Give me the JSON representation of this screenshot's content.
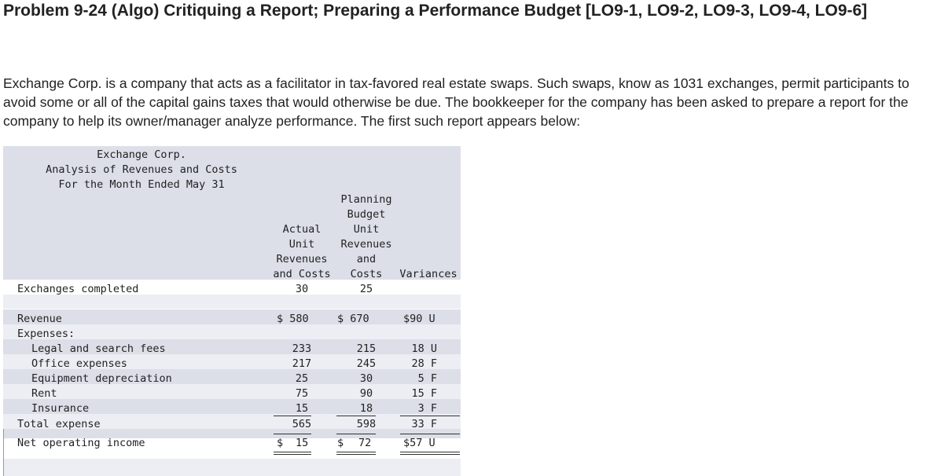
{
  "problem_title": "Problem 9-24 (Algo) Critiquing a Report; Preparing a Performance Budget [LO9-1, LO9-2, LO9-3, LO9-4, LO9-6]",
  "intro_text": "Exchange Corp. is a company that acts as a facilitator in tax-favored real estate swaps. Such swaps, know as 1031 exchanges, permit participants to avoid some or all of the capital gains taxes that would otherwise be due. The bookkeeper for the company has been asked to prepare a report for the company to help its owner/manager analyze performance. The first such report appears below:",
  "report": {
    "company": "Exchange Corp.",
    "subtitle": "Analysis of Revenues and Costs",
    "period": "For the Month Ended May 31",
    "col_actual": [
      "Actual",
      "Unit",
      "Revenues",
      "and Costs"
    ],
    "col_planning": [
      "Planning",
      "Budget",
      "Unit",
      "Revenues",
      "and",
      "Costs"
    ],
    "col_variances": "Variances",
    "exchanges": {
      "label": "Exchanges completed",
      "actual": "30",
      "planning": "25"
    },
    "revenue": {
      "label": "Revenue",
      "actual": "$ 580",
      "planning": "$ 670",
      "variance": "$90 U"
    },
    "expenses_label": "Expenses:",
    "expense_rows": [
      {
        "label": "Legal and search fees",
        "actual": "233",
        "planning": "215",
        "variance": "18 U"
      },
      {
        "label": "Office expenses",
        "actual": "217",
        "planning": "245",
        "variance": "28 F"
      },
      {
        "label": "Equipment depreciation",
        "actual": "25",
        "planning": "30",
        "variance": "5 F"
      },
      {
        "label": "Rent",
        "actual": "75",
        "planning": "90",
        "variance": "15 F"
      },
      {
        "label": "Insurance",
        "actual": "15",
        "planning": "18",
        "variance": "3 F"
      }
    ],
    "total": {
      "label": "Total expense",
      "actual": "565",
      "planning": "598",
      "variance": "33 F"
    },
    "net": {
      "label": "Net operating income",
      "actual_sign": "$",
      "actual": "15",
      "planning_sign": "$",
      "planning": "72",
      "variance": "$57 U"
    }
  }
}
